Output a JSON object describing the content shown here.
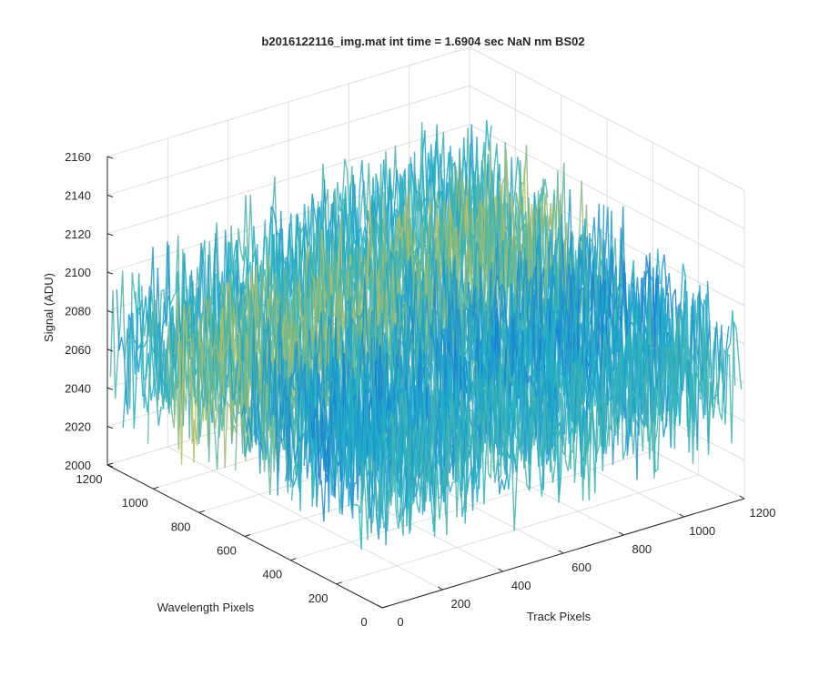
{
  "chart_data": {
    "type": "surface",
    "title": "b2016122116_img.mat int time = 1.6904 sec  NaN nm BS02",
    "xlabel": "Track Pixels",
    "ylabel": "Wavelength Pixels",
    "zlabel": "Signal (ADU)",
    "xlim": [
      0,
      1200
    ],
    "ylim": [
      0,
      1200
    ],
    "zlim": [
      2000,
      2160
    ],
    "xticks": [
      "0",
      "200",
      "400",
      "600",
      "800",
      "1000",
      "1200"
    ],
    "yticks": [
      "0",
      "200",
      "400",
      "600",
      "800",
      "1000",
      "1200"
    ],
    "zticks": [
      "2000",
      "2020",
      "2040",
      "2060",
      "2080",
      "2100",
      "2120",
      "2140",
      "2160"
    ],
    "grid": true,
    "colormap": "parula",
    "surface_summary": {
      "mean_signal": 2065,
      "noise_range": [
        2005,
        2155
      ],
      "peak_near": {
        "track": 1050,
        "wavelength": 1050,
        "signal": 2150
      }
    }
  },
  "colors": {
    "axis": "#262626",
    "grid": "#dedede",
    "surface_low": "#1a6fd6",
    "surface_mid": "#1fb1c7",
    "surface_high": "#e6c240"
  }
}
